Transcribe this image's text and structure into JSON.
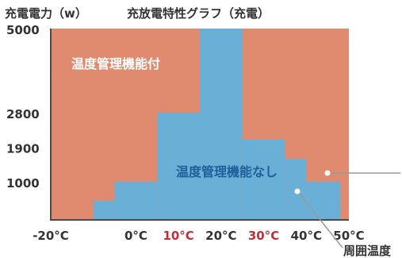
{
  "chart_data": {
    "type": "area",
    "title": "充放電特性グラフ（充電）",
    "ylabel": "充電電力（w）",
    "xlabel": "周囲温度",
    "xlim": [
      -20,
      50
    ],
    "ylim": [
      0,
      5000
    ],
    "x_ticks": [
      {
        "value": -20,
        "label": "-20°C",
        "highlight": false
      },
      {
        "value": 0,
        "label": "0°C",
        "highlight": false
      },
      {
        "value": 10,
        "label": "10°C",
        "highlight": true
      },
      {
        "value": 20,
        "label": "20°C",
        "highlight": false
      },
      {
        "value": 30,
        "label": "30°C",
        "highlight": true
      },
      {
        "value": 40,
        "label": "40°C",
        "highlight": false
      },
      {
        "value": 50,
        "label": "50°C",
        "highlight": false
      }
    ],
    "y_ticks": [
      {
        "value": 5000,
        "label": "5000"
      },
      {
        "value": 2800,
        "label": "2800"
      },
      {
        "value": 1900,
        "label": "1900"
      },
      {
        "value": 1000,
        "label": "1000"
      }
    ],
    "series": [
      {
        "name": "温度管理機能付",
        "color": "#e08a70",
        "steps": [
          {
            "x0": -20,
            "x1": 50,
            "y": 5000
          }
        ]
      },
      {
        "name": "温度管理機能なし",
        "color": "#6aafd6",
        "steps": [
          {
            "x0": -10,
            "x1": -5,
            "y": 500
          },
          {
            "x0": -5,
            "x1": 5,
            "y": 1000
          },
          {
            "x0": 5,
            "x1": 15,
            "y": 2800
          },
          {
            "x0": 15,
            "x1": 25,
            "y": 5000
          },
          {
            "x0": 25,
            "x1": 35,
            "y": 2100
          },
          {
            "x0": 35,
            "x1": 40,
            "y": 1600
          },
          {
            "x0": 40,
            "x1": 48,
            "y": 1000
          }
        ]
      }
    ],
    "colors": {
      "axis": "#4a4a4a",
      "text": "#333333",
      "highlight": "#c0303a",
      "label_orange": "#ffffff",
      "label_blue": "#1f5f9a",
      "leader": "#9a9a9a"
    }
  }
}
